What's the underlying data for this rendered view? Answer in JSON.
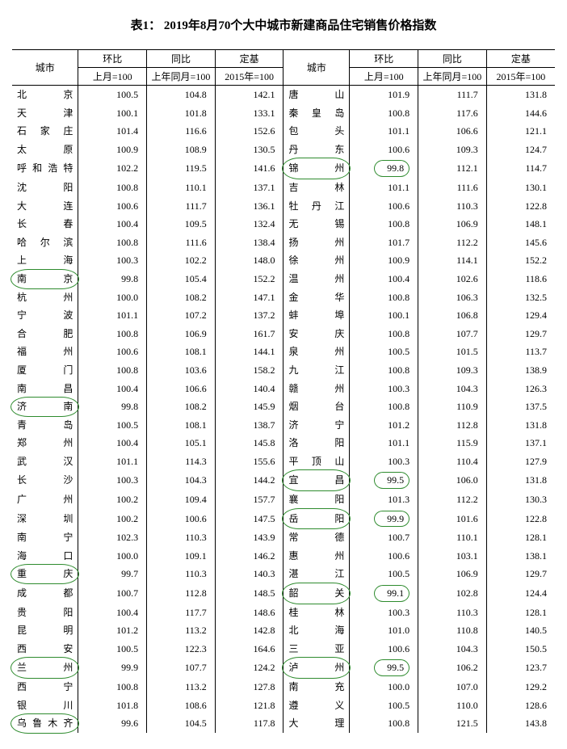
{
  "title": "表1：  2019年8月70个大中城市新建商品住宅销售价格指数",
  "header": {
    "city": "城市",
    "mom": "环比",
    "yoy": "同比",
    "base": "定基",
    "mom_sub": "上月=100",
    "yoy_sub": "上年同月=100",
    "base_sub": "2015年=100"
  },
  "leftRows": [
    {
      "city": "北京",
      "mom": "100.5",
      "yoy": "104.8",
      "base": "142.1"
    },
    {
      "city": "天津",
      "mom": "100.1",
      "yoy": "101.8",
      "base": "133.1"
    },
    {
      "city": "石家庄",
      "mom": "101.4",
      "yoy": "116.6",
      "base": "152.6"
    },
    {
      "city": "太原",
      "mom": "100.9",
      "yoy": "108.9",
      "base": "130.5"
    },
    {
      "city": "呼和浩特",
      "mom": "102.2",
      "yoy": "119.5",
      "base": "141.6"
    },
    {
      "city": "沈阳",
      "mom": "100.8",
      "yoy": "110.1",
      "base": "137.1"
    },
    {
      "city": "大连",
      "mom": "100.6",
      "yoy": "111.7",
      "base": "136.1"
    },
    {
      "city": "长春",
      "mom": "100.4",
      "yoy": "109.5",
      "base": "132.4"
    },
    {
      "city": "哈尔滨",
      "mom": "100.8",
      "yoy": "111.6",
      "base": "138.4"
    },
    {
      "city": "上海",
      "mom": "100.3",
      "yoy": "102.2",
      "base": "148.0"
    },
    {
      "city": "南京",
      "mom": "99.8",
      "yoy": "105.4",
      "base": "152.2",
      "cityCircle": true
    },
    {
      "city": "杭州",
      "mom": "100.0",
      "yoy": "108.2",
      "base": "147.1"
    },
    {
      "city": "宁波",
      "mom": "101.1",
      "yoy": "107.2",
      "base": "137.2"
    },
    {
      "city": "合肥",
      "mom": "100.8",
      "yoy": "106.9",
      "base": "161.7"
    },
    {
      "city": "福州",
      "mom": "100.6",
      "yoy": "108.1",
      "base": "144.1"
    },
    {
      "city": "厦门",
      "mom": "100.8",
      "yoy": "103.6",
      "base": "158.2"
    },
    {
      "city": "南昌",
      "mom": "100.4",
      "yoy": "106.6",
      "base": "140.4"
    },
    {
      "city": "济南",
      "mom": "99.8",
      "yoy": "108.2",
      "base": "145.9",
      "cityCircle": true
    },
    {
      "city": "青岛",
      "mom": "100.5",
      "yoy": "108.1",
      "base": "138.7"
    },
    {
      "city": "郑州",
      "mom": "100.4",
      "yoy": "105.1",
      "base": "145.8"
    },
    {
      "city": "武汉",
      "mom": "101.1",
      "yoy": "114.3",
      "base": "155.6"
    },
    {
      "city": "长沙",
      "mom": "100.3",
      "yoy": "104.3",
      "base": "144.2"
    },
    {
      "city": "广州",
      "mom": "100.2",
      "yoy": "109.4",
      "base": "157.7"
    },
    {
      "city": "深圳",
      "mom": "100.2",
      "yoy": "100.6",
      "base": "147.5"
    },
    {
      "city": "南宁",
      "mom": "102.3",
      "yoy": "110.3",
      "base": "143.9"
    },
    {
      "city": "海口",
      "mom": "100.0",
      "yoy": "109.1",
      "base": "146.2"
    },
    {
      "city": "重庆",
      "mom": "99.7",
      "yoy": "110.3",
      "base": "140.3",
      "cityCircle": true
    },
    {
      "city": "成都",
      "mom": "100.7",
      "yoy": "112.8",
      "base": "148.5"
    },
    {
      "city": "贵阳",
      "mom": "100.4",
      "yoy": "117.7",
      "base": "148.6"
    },
    {
      "city": "昆明",
      "mom": "101.2",
      "yoy": "113.2",
      "base": "142.8"
    },
    {
      "city": "西安",
      "mom": "100.5",
      "yoy": "122.3",
      "base": "164.6"
    },
    {
      "city": "兰州",
      "mom": "99.9",
      "yoy": "107.7",
      "base": "124.2",
      "cityCircle": true
    },
    {
      "city": "西宁",
      "mom": "100.8",
      "yoy": "113.2",
      "base": "127.8"
    },
    {
      "city": "银川",
      "mom": "101.8",
      "yoy": "108.6",
      "base": "121.8"
    },
    {
      "city": "乌鲁木齐",
      "mom": "99.6",
      "yoy": "104.5",
      "base": "117.8",
      "cityCircle": true
    }
  ],
  "rightRows": [
    {
      "city": "唐山",
      "mom": "101.9",
      "yoy": "111.7",
      "base": "131.8"
    },
    {
      "city": "秦皇岛",
      "mom": "100.8",
      "yoy": "117.6",
      "base": "144.6"
    },
    {
      "city": "包头",
      "mom": "101.1",
      "yoy": "106.6",
      "base": "121.1"
    },
    {
      "city": "丹东",
      "mom": "100.6",
      "yoy": "109.3",
      "base": "124.7"
    },
    {
      "city": "锦州",
      "mom": "99.8",
      "yoy": "112.1",
      "base": "114.7",
      "cityCircle": true,
      "momCircle": true
    },
    {
      "city": "吉林",
      "mom": "101.1",
      "yoy": "111.6",
      "base": "130.1"
    },
    {
      "city": "牡丹江",
      "mom": "100.6",
      "yoy": "110.3",
      "base": "122.8"
    },
    {
      "city": "无锡",
      "mom": "100.8",
      "yoy": "106.9",
      "base": "148.1"
    },
    {
      "city": "扬州",
      "mom": "101.7",
      "yoy": "112.2",
      "base": "145.6"
    },
    {
      "city": "徐州",
      "mom": "100.9",
      "yoy": "114.1",
      "base": "152.2"
    },
    {
      "city": "温州",
      "mom": "100.4",
      "yoy": "102.6",
      "base": "118.6"
    },
    {
      "city": "金华",
      "mom": "100.8",
      "yoy": "106.3",
      "base": "132.5"
    },
    {
      "city": "蚌埠",
      "mom": "100.1",
      "yoy": "106.8",
      "base": "129.4"
    },
    {
      "city": "安庆",
      "mom": "100.8",
      "yoy": "107.7",
      "base": "129.7"
    },
    {
      "city": "泉州",
      "mom": "100.5",
      "yoy": "101.5",
      "base": "113.7"
    },
    {
      "city": "九江",
      "mom": "100.8",
      "yoy": "109.3",
      "base": "138.9"
    },
    {
      "city": "赣州",
      "mom": "100.3",
      "yoy": "104.3",
      "base": "126.3"
    },
    {
      "city": "烟台",
      "mom": "100.8",
      "yoy": "110.9",
      "base": "137.5"
    },
    {
      "city": "济宁",
      "mom": "101.2",
      "yoy": "112.8",
      "base": "131.8"
    },
    {
      "city": "洛阳",
      "mom": "101.1",
      "yoy": "115.9",
      "base": "137.1"
    },
    {
      "city": "平顶山",
      "mom": "100.3",
      "yoy": "110.4",
      "base": "127.9"
    },
    {
      "city": "宜昌",
      "mom": "99.5",
      "yoy": "106.0",
      "base": "131.8",
      "cityCircle": true,
      "momCircle": true
    },
    {
      "city": "襄阳",
      "mom": "101.3",
      "yoy": "112.2",
      "base": "130.3"
    },
    {
      "city": "岳阳",
      "mom": "99.9",
      "yoy": "101.6",
      "base": "122.8",
      "cityCircle": true,
      "momCircle": true
    },
    {
      "city": "常德",
      "mom": "100.7",
      "yoy": "110.1",
      "base": "128.1"
    },
    {
      "city": "惠州",
      "mom": "100.6",
      "yoy": "103.1",
      "base": "138.1"
    },
    {
      "city": "湛江",
      "mom": "100.5",
      "yoy": "106.9",
      "base": "129.7"
    },
    {
      "city": "韶关",
      "mom": "99.1",
      "yoy": "102.8",
      "base": "124.4",
      "cityCircle": true,
      "momCircle": true
    },
    {
      "city": "桂林",
      "mom": "100.3",
      "yoy": "110.3",
      "base": "128.1"
    },
    {
      "city": "北海",
      "mom": "101.0",
      "yoy": "110.8",
      "base": "140.5"
    },
    {
      "city": "三亚",
      "mom": "100.6",
      "yoy": "104.3",
      "base": "150.5"
    },
    {
      "city": "泸州",
      "mom": "99.5",
      "yoy": "106.2",
      "base": "123.7",
      "cityCircle": true,
      "momCircle": true
    },
    {
      "city": "南充",
      "mom": "100.0",
      "yoy": "107.0",
      "base": "129.2"
    },
    {
      "city": "遵义",
      "mom": "100.5",
      "yoy": "110.0",
      "base": "128.6"
    },
    {
      "city": "大理",
      "mom": "100.8",
      "yoy": "121.5",
      "base": "143.8"
    }
  ],
  "style": {
    "circleColor": "#2e8b2e",
    "textColor": "#000000",
    "background": "#ffffff"
  }
}
